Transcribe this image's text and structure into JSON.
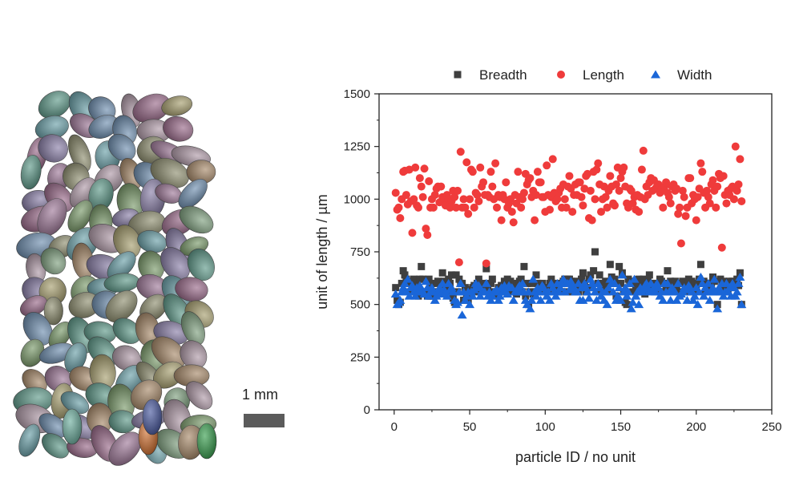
{
  "figure": {
    "scale_bar_label": "1 mm"
  },
  "chart_data": {
    "type": "scatter",
    "title": "",
    "xlabel": "particle ID / no unit",
    "ylabel": "unit of length / µm",
    "xlim": [
      -10,
      250
    ],
    "ylim": [
      0,
      1500
    ],
    "xticks": [
      "0",
      "50",
      "100",
      "150",
      "200",
      "250"
    ],
    "yticks": [
      "0",
      "250",
      "500",
      "750",
      "1000",
      "1250",
      "1500"
    ],
    "legend_position": "top",
    "grid": false,
    "x_start": 1,
    "series": [
      {
        "name": "Breadth",
        "marker": "square",
        "color": "#3f3f3f",
        "values": [
          580,
          520,
          500,
          510,
          600,
          660,
          640,
          620,
          610,
          600,
          560,
          580,
          620,
          600,
          560,
          540,
          620,
          680,
          620,
          560,
          560,
          540,
          620,
          540,
          600,
          540,
          560,
          600,
          610,
          560,
          560,
          650,
          610,
          570,
          560,
          620,
          600,
          640,
          530,
          510,
          640,
          560,
          620,
          600,
          600,
          520,
          580,
          540,
          520,
          560,
          570,
          580,
          590,
          560,
          600,
          620,
          560,
          580,
          600,
          560,
          670,
          580,
          560,
          600,
          620,
          550,
          560,
          540,
          580,
          570,
          590,
          560,
          610,
          600,
          620,
          590,
          610,
          560,
          590,
          600,
          550,
          580,
          610,
          620,
          560,
          680,
          540,
          600,
          500,
          560,
          600,
          550,
          560,
          640,
          600,
          590,
          560,
          600,
          560,
          580,
          580,
          560,
          600,
          620,
          600,
          590,
          570,
          580,
          600,
          560,
          600,
          610,
          620,
          560,
          620,
          620,
          610,
          560,
          580,
          600,
          610,
          560,
          590,
          620,
          650,
          600,
          560,
          580,
          620,
          640,
          580,
          660,
          750,
          560,
          600,
          640,
          580,
          580,
          600,
          610,
          560,
          600,
          690,
          630,
          600,
          620,
          540,
          600,
          680,
          600,
          650,
          560,
          510,
          500,
          620,
          610,
          600,
          560,
          600,
          570,
          600,
          620,
          560,
          600,
          620,
          550,
          580,
          610,
          640,
          600,
          580,
          600,
          560,
          580,
          600,
          620,
          610,
          560,
          600,
          580,
          660,
          560,
          610,
          580,
          600,
          610,
          590,
          560,
          600,
          600,
          610,
          600,
          560,
          560,
          620,
          580,
          610,
          560,
          600,
          580,
          600,
          620,
          690,
          600,
          610,
          560,
          580,
          600,
          560,
          600,
          630,
          610,
          560,
          500,
          560,
          620,
          600,
          610,
          580,
          600,
          560,
          610,
          600,
          610,
          600,
          600,
          620,
          590,
          650,
          500
        ]
      },
      {
        "name": "Length",
        "marker": "circle",
        "color": "#ef3b3b",
        "values": [
          1030,
          950,
          960,
          910,
          1000,
          1130,
          1135,
          1020,
          975,
          1140,
          990,
          840,
          1000,
          1150,
          970,
          960,
          1100,
          1060,
          1010,
          1145,
          860,
          830,
          1085,
          960,
          1000,
          960,
          1020,
          1050,
          1060,
          985,
          1060,
          1010,
          1000,
          970,
          1020,
          1000,
          960,
          990,
          1040,
          1010,
          960,
          1040,
          700,
          1225,
          960,
          1000,
          960,
          1175,
          930,
          1000,
          1140,
          1130,
          960,
          1030,
          1020,
          990,
          1150,
          1060,
          1080,
          1020,
          695,
          1020,
          1010,
          1130,
          1060,
          1000,
          1170,
          960,
          1020,
          1010,
          900,
          1020,
          1000,
          1080,
          960,
          980,
          1000,
          940,
          890,
          1020,
          980,
          1130,
          1010,
          960,
          1000,
          1030,
          1120,
          1070,
          1090,
          1100,
          1010,
          1040,
          900,
          1020,
          1130,
          1080,
          1080,
          1010,
          1010,
          940,
          1160,
          1020,
          950,
          1010,
          1190,
          1030,
          990,
          1000,
          1030,
          1050,
          960,
          1070,
          1000,
          960,
          1060,
          1110,
          1050,
          940,
          1020,
          1070,
          1020,
          1080,
          1080,
          1010,
          970,
          1050,
          1110,
          1120,
          910,
          1040,
          900,
          1130,
          1000,
          1140,
          1170,
          1070,
          940,
          1000,
          1060,
          1010,
          960,
          1040,
          1110,
          1060,
          980,
          970,
          1070,
          1150,
          1040,
          1100,
          1130,
          1150,
          1060,
          980,
          960,
          1050,
          1040,
          980,
          1010,
          950,
          1020,
          940,
          1010,
          1140,
          1230,
          1000,
          1060,
          1020,
          1080,
          1100,
          1040,
          1090,
          1050,
          1060,
          1070,
          1030,
          1050,
          960,
          1060,
          1080,
          1030,
          1010,
          980,
          1060,
          1070,
          1040,
          1050,
          930,
          960,
          790,
          1040,
          1010,
          920,
          960,
          1100,
          1100,
          980,
          1020,
          1000,
          900,
          1010,
          1050,
          1170,
          1130,
          1030,
          960,
          1040,
          1010,
          980,
          1070,
          1090,
          1040,
          960,
          1060,
          1120,
          1100,
          770,
          1110,
          1020,
          980,
          1040,
          1020,
          1050,
          1060,
          1000,
          1250,
          1040,
          1070,
          1190,
          990
        ]
      },
      {
        "name": "Width",
        "marker": "triangle",
        "color": "#1a66d8",
        "values": [
          550,
          500,
          510,
          520,
          560,
          580,
          600,
          560,
          620,
          540,
          580,
          590,
          560,
          540,
          580,
          560,
          590,
          560,
          560,
          550,
          610,
          580,
          540,
          560,
          580,
          560,
          520,
          540,
          560,
          580,
          550,
          600,
          570,
          560,
          540,
          600,
          570,
          580,
          560,
          520,
          500,
          510,
          560,
          600,
          450,
          560,
          520,
          540,
          560,
          500,
          560,
          540,
          570,
          600,
          580,
          590,
          540,
          560,
          560,
          560,
          600,
          540,
          560,
          520,
          540,
          560,
          560,
          570,
          520,
          540,
          580,
          560,
          590,
          560,
          550,
          590,
          580,
          580,
          520,
          560,
          560,
          580,
          590,
          560,
          600,
          560,
          520,
          500,
          560,
          480,
          520,
          620,
          560,
          540,
          580,
          560,
          520,
          590,
          580,
          560,
          540,
          560,
          520,
          600,
          580,
          560,
          540,
          600,
          560,
          580,
          600,
          620,
          560,
          600,
          600,
          570,
          610,
          580,
          580,
          560,
          560,
          600,
          520,
          580,
          520,
          600,
          580,
          560,
          530,
          620,
          600,
          580,
          560,
          520,
          600,
          580,
          540,
          560,
          520,
          560,
          500,
          580,
          620,
          600,
          560,
          600,
          520,
          540,
          580,
          520,
          640,
          560,
          580,
          540,
          560,
          600,
          480,
          510,
          620,
          540,
          560,
          500,
          580,
          560,
          570,
          590,
          600,
          580,
          560,
          600,
          570,
          580,
          560,
          600,
          580,
          540,
          560,
          520,
          600,
          560,
          600,
          560,
          520,
          580,
          560,
          560,
          520,
          600,
          540,
          550,
          560,
          580,
          570,
          520,
          590,
          580,
          560,
          520,
          540,
          580,
          500,
          560,
          630,
          600,
          540,
          580,
          560,
          600,
          520,
          560,
          580,
          620,
          560,
          480,
          580,
          560,
          600,
          540,
          560,
          600,
          560,
          580,
          540,
          600,
          580,
          540,
          560,
          600,
          630,
          500
        ]
      }
    ]
  }
}
